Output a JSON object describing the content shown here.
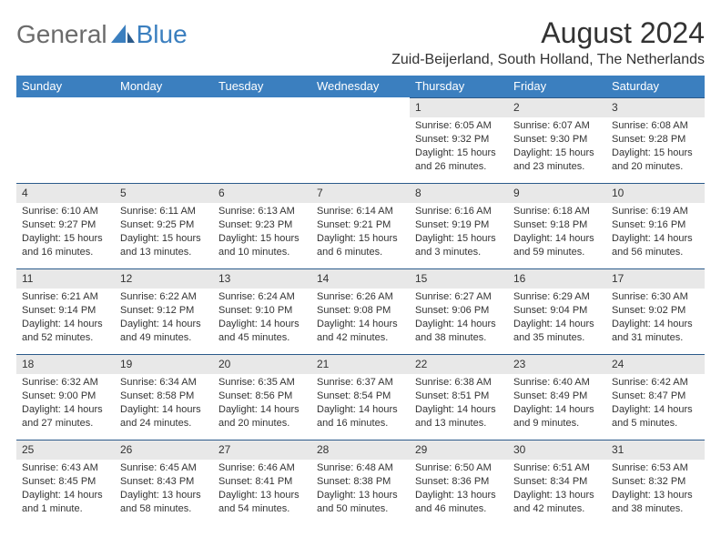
{
  "logo": {
    "part1": "General",
    "part2": "Blue"
  },
  "title": "August 2024",
  "location": "Zuid-Beijerland, South Holland, The Netherlands",
  "colors": {
    "header_bg": "#3b7fbf",
    "header_fg": "#ffffff",
    "daynum_bg": "#e8e8e8",
    "divider": "#2b5a8a",
    "text": "#333333",
    "logo_gray": "#6b6b6b",
    "logo_blue": "#3b7fbf"
  },
  "dow": [
    "Sunday",
    "Monday",
    "Tuesday",
    "Wednesday",
    "Thursday",
    "Friday",
    "Saturday"
  ],
  "weeks": [
    [
      {
        "empty": true
      },
      {
        "empty": true
      },
      {
        "empty": true
      },
      {
        "empty": true
      },
      {
        "num": "1",
        "sunrise": "Sunrise: 6:05 AM",
        "sunset": "Sunset: 9:32 PM",
        "daylight": "Daylight: 15 hours and 26 minutes."
      },
      {
        "num": "2",
        "sunrise": "Sunrise: 6:07 AM",
        "sunset": "Sunset: 9:30 PM",
        "daylight": "Daylight: 15 hours and 23 minutes."
      },
      {
        "num": "3",
        "sunrise": "Sunrise: 6:08 AM",
        "sunset": "Sunset: 9:28 PM",
        "daylight": "Daylight: 15 hours and 20 minutes."
      }
    ],
    [
      {
        "num": "4",
        "sunrise": "Sunrise: 6:10 AM",
        "sunset": "Sunset: 9:27 PM",
        "daylight": "Daylight: 15 hours and 16 minutes."
      },
      {
        "num": "5",
        "sunrise": "Sunrise: 6:11 AM",
        "sunset": "Sunset: 9:25 PM",
        "daylight": "Daylight: 15 hours and 13 minutes."
      },
      {
        "num": "6",
        "sunrise": "Sunrise: 6:13 AM",
        "sunset": "Sunset: 9:23 PM",
        "daylight": "Daylight: 15 hours and 10 minutes."
      },
      {
        "num": "7",
        "sunrise": "Sunrise: 6:14 AM",
        "sunset": "Sunset: 9:21 PM",
        "daylight": "Daylight: 15 hours and 6 minutes."
      },
      {
        "num": "8",
        "sunrise": "Sunrise: 6:16 AM",
        "sunset": "Sunset: 9:19 PM",
        "daylight": "Daylight: 15 hours and 3 minutes."
      },
      {
        "num": "9",
        "sunrise": "Sunrise: 6:18 AM",
        "sunset": "Sunset: 9:18 PM",
        "daylight": "Daylight: 14 hours and 59 minutes."
      },
      {
        "num": "10",
        "sunrise": "Sunrise: 6:19 AM",
        "sunset": "Sunset: 9:16 PM",
        "daylight": "Daylight: 14 hours and 56 minutes."
      }
    ],
    [
      {
        "num": "11",
        "sunrise": "Sunrise: 6:21 AM",
        "sunset": "Sunset: 9:14 PM",
        "daylight": "Daylight: 14 hours and 52 minutes."
      },
      {
        "num": "12",
        "sunrise": "Sunrise: 6:22 AM",
        "sunset": "Sunset: 9:12 PM",
        "daylight": "Daylight: 14 hours and 49 minutes."
      },
      {
        "num": "13",
        "sunrise": "Sunrise: 6:24 AM",
        "sunset": "Sunset: 9:10 PM",
        "daylight": "Daylight: 14 hours and 45 minutes."
      },
      {
        "num": "14",
        "sunrise": "Sunrise: 6:26 AM",
        "sunset": "Sunset: 9:08 PM",
        "daylight": "Daylight: 14 hours and 42 minutes."
      },
      {
        "num": "15",
        "sunrise": "Sunrise: 6:27 AM",
        "sunset": "Sunset: 9:06 PM",
        "daylight": "Daylight: 14 hours and 38 minutes."
      },
      {
        "num": "16",
        "sunrise": "Sunrise: 6:29 AM",
        "sunset": "Sunset: 9:04 PM",
        "daylight": "Daylight: 14 hours and 35 minutes."
      },
      {
        "num": "17",
        "sunrise": "Sunrise: 6:30 AM",
        "sunset": "Sunset: 9:02 PM",
        "daylight": "Daylight: 14 hours and 31 minutes."
      }
    ],
    [
      {
        "num": "18",
        "sunrise": "Sunrise: 6:32 AM",
        "sunset": "Sunset: 9:00 PM",
        "daylight": "Daylight: 14 hours and 27 minutes."
      },
      {
        "num": "19",
        "sunrise": "Sunrise: 6:34 AM",
        "sunset": "Sunset: 8:58 PM",
        "daylight": "Daylight: 14 hours and 24 minutes."
      },
      {
        "num": "20",
        "sunrise": "Sunrise: 6:35 AM",
        "sunset": "Sunset: 8:56 PM",
        "daylight": "Daylight: 14 hours and 20 minutes."
      },
      {
        "num": "21",
        "sunrise": "Sunrise: 6:37 AM",
        "sunset": "Sunset: 8:54 PM",
        "daylight": "Daylight: 14 hours and 16 minutes."
      },
      {
        "num": "22",
        "sunrise": "Sunrise: 6:38 AM",
        "sunset": "Sunset: 8:51 PM",
        "daylight": "Daylight: 14 hours and 13 minutes."
      },
      {
        "num": "23",
        "sunrise": "Sunrise: 6:40 AM",
        "sunset": "Sunset: 8:49 PM",
        "daylight": "Daylight: 14 hours and 9 minutes."
      },
      {
        "num": "24",
        "sunrise": "Sunrise: 6:42 AM",
        "sunset": "Sunset: 8:47 PM",
        "daylight": "Daylight: 14 hours and 5 minutes."
      }
    ],
    [
      {
        "num": "25",
        "sunrise": "Sunrise: 6:43 AM",
        "sunset": "Sunset: 8:45 PM",
        "daylight": "Daylight: 14 hours and 1 minute."
      },
      {
        "num": "26",
        "sunrise": "Sunrise: 6:45 AM",
        "sunset": "Sunset: 8:43 PM",
        "daylight": "Daylight: 13 hours and 58 minutes."
      },
      {
        "num": "27",
        "sunrise": "Sunrise: 6:46 AM",
        "sunset": "Sunset: 8:41 PM",
        "daylight": "Daylight: 13 hours and 54 minutes."
      },
      {
        "num": "28",
        "sunrise": "Sunrise: 6:48 AM",
        "sunset": "Sunset: 8:38 PM",
        "daylight": "Daylight: 13 hours and 50 minutes."
      },
      {
        "num": "29",
        "sunrise": "Sunrise: 6:50 AM",
        "sunset": "Sunset: 8:36 PM",
        "daylight": "Daylight: 13 hours and 46 minutes."
      },
      {
        "num": "30",
        "sunrise": "Sunrise: 6:51 AM",
        "sunset": "Sunset: 8:34 PM",
        "daylight": "Daylight: 13 hours and 42 minutes."
      },
      {
        "num": "31",
        "sunrise": "Sunrise: 6:53 AM",
        "sunset": "Sunset: 8:32 PM",
        "daylight": "Daylight: 13 hours and 38 minutes."
      }
    ]
  ]
}
